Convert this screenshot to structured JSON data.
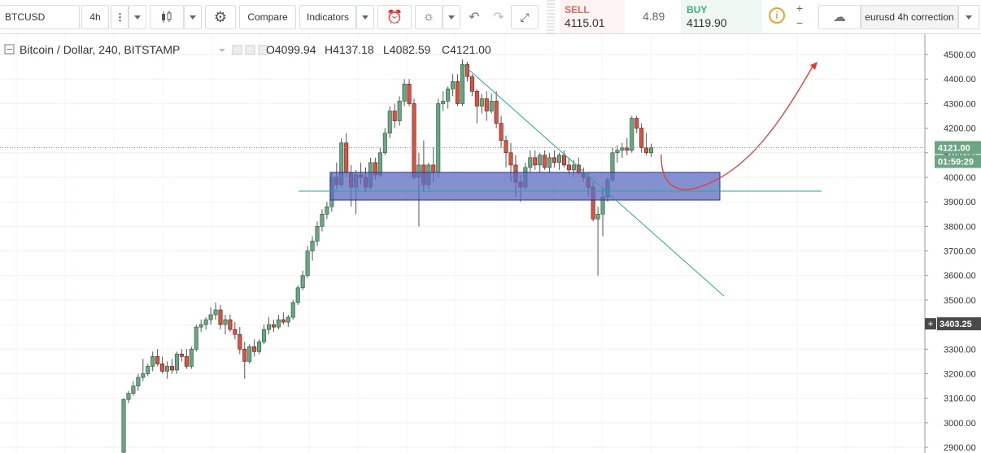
{
  "toolbar": {
    "symbol": "BTCUSD",
    "interval": "4h",
    "compare": "Compare",
    "indicators": "Indicators",
    "sell_label": "SELL",
    "sell_price": "4115.01",
    "spread": "4.89",
    "buy_label": "BUY",
    "buy_price": "4119.90",
    "chart_name": "eurusd 4h correction"
  },
  "chart_data": {
    "type": "candlestick",
    "title": "Bitcoin / Dollar, 240, BITSTAMP",
    "ohlc_header": [
      "O4099.94",
      "H4137.18",
      "L4082.59",
      "C4121.00"
    ],
    "open": [
      2880,
      3095,
      3120,
      3150,
      3185,
      3200,
      3230,
      3270,
      3240,
      3210,
      3230,
      3215,
      3280,
      3270,
      3230,
      3300,
      3390,
      3400,
      3420,
      3440,
      3460,
      3400,
      3420,
      3380,
      3360,
      3300,
      3250,
      3310,
      3290,
      3330,
      3380,
      3400,
      3390,
      3420,
      3410,
      3430,
      3490,
      3550,
      3600,
      3700,
      3740,
      3800,
      3850,
      3880,
      4000,
      3970,
      4140,
      4020,
      3960,
      4010,
      4000,
      3960,
      4060,
      4010,
      4100,
      4180,
      4270,
      4230,
      4310,
      4380,
      4300,
      4000,
      4050,
      3970,
      4050,
      4020,
      4300,
      4310,
      4360,
      4390,
      4300,
      4460,
      4410,
      4350,
      4290,
      4320,
      4270,
      4310,
      4220,
      4150,
      4100,
      4050,
      3980,
      3960,
      4040,
      4080,
      4050,
      4090,
      4040,
      4080,
      4060,
      4090,
      4050,
      4030,
      4050,
      4020,
      4000,
      3960,
      3830,
      3850,
      3920,
      3990,
      4100,
      4110,
      4120,
      4110,
      4240,
      4200,
      4120,
      4099.94
    ],
    "high": [
      3100,
      3130,
      3170,
      3200,
      3260,
      3240,
      3290,
      3300,
      3270,
      3250,
      3260,
      3290,
      3300,
      3300,
      3310,
      3400,
      3420,
      3430,
      3470,
      3490,
      3480,
      3440,
      3440,
      3410,
      3390,
      3330,
      3320,
      3340,
      3340,
      3400,
      3430,
      3420,
      3440,
      3450,
      3440,
      3500,
      3560,
      3620,
      3720,
      3760,
      3820,
      3870,
      3900,
      4020,
      4060,
      4160,
      4180,
      4050,
      4030,
      4060,
      4040,
      4080,
      4080,
      4120,
      4200,
      4290,
      4300,
      4330,
      4400,
      4400,
      4320,
      4100,
      4150,
      4060,
      4120,
      4320,
      4350,
      4370,
      4420,
      4420,
      4480,
      4470,
      4420,
      4360,
      4340,
      4350,
      4340,
      4350,
      4250,
      4170,
      4140,
      4090,
      4010,
      4060,
      4110,
      4110,
      4100,
      4110,
      4100,
      4110,
      4100,
      4110,
      4080,
      4070,
      4080,
      4040,
      4020,
      3980,
      3880,
      3960,
      4000,
      4120,
      4130,
      4140,
      4160,
      4250,
      4250,
      4220,
      4180,
      4137.18
    ],
    "low": [
      2870,
      3080,
      3110,
      3130,
      3170,
      3190,
      3210,
      3230,
      3200,
      3180,
      3200,
      3200,
      3250,
      3220,
      3220,
      3290,
      3370,
      3380,
      3400,
      3420,
      3380,
      3360,
      3370,
      3340,
      3280,
      3180,
      3240,
      3270,
      3280,
      3320,
      3360,
      3370,
      3380,
      3400,
      3390,
      3420,
      3480,
      3540,
      3590,
      3660,
      3720,
      3780,
      3830,
      3860,
      3950,
      3960,
      4000,
      3880,
      3850,
      3970,
      3940,
      3950,
      3990,
      4000,
      4090,
      4160,
      4200,
      4210,
      4290,
      4290,
      3990,
      3800,
      3940,
      3950,
      3980,
      4000,
      4270,
      4280,
      4330,
      4290,
      4290,
      4390,
      4330,
      4220,
      4260,
      4230,
      4260,
      4200,
      4120,
      4040,
      3980,
      3920,
      3900,
      3950,
      4020,
      4030,
      4020,
      4030,
      4020,
      4040,
      4030,
      4040,
      4010,
      4000,
      4010,
      3980,
      3920,
      3820,
      3600,
      3760,
      3900,
      3980,
      4060,
      4080,
      4090,
      4100,
      4180,
      4100,
      4090,
      4082.59
    ],
    "close": [
      3095,
      3120,
      3150,
      3185,
      3200,
      3230,
      3270,
      3240,
      3210,
      3230,
      3215,
      3280,
      3270,
      3230,
      3300,
      3390,
      3400,
      3420,
      3440,
      3460,
      3400,
      3420,
      3380,
      3360,
      3300,
      3250,
      3310,
      3290,
      3330,
      3380,
      3400,
      3390,
      3420,
      3410,
      3430,
      3490,
      3550,
      3600,
      3700,
      3740,
      3800,
      3850,
      3880,
      4000,
      3970,
      4140,
      4020,
      3960,
      4010,
      4000,
      3960,
      4060,
      4010,
      4100,
      4180,
      4270,
      4230,
      4310,
      4380,
      4300,
      4000,
      4050,
      3970,
      4050,
      4020,
      4300,
      4310,
      4360,
      4390,
      4300,
      4460,
      4410,
      4350,
      4290,
      4320,
      4270,
      4310,
      4220,
      4150,
      4100,
      4050,
      3980,
      3960,
      4040,
      4080,
      4050,
      4090,
      4040,
      4080,
      4060,
      4090,
      4050,
      4030,
      4050,
      4020,
      4000,
      3960,
      3830,
      3850,
      3920,
      3990,
      4100,
      4110,
      4120,
      4110,
      4240,
      4200,
      4120,
      4100,
      4121
    ],
    "up_color": "#6ba583",
    "down_color": "#d75442",
    "ylim": [
      2877,
      4583
    ],
    "yticks": [
      {
        "value": 2900,
        "label": "2900.00"
      },
      {
        "value": 3000,
        "label": "3000.00"
      },
      {
        "value": 3100,
        "label": "3100.00"
      },
      {
        "value": 3200,
        "label": "3200.00"
      },
      {
        "value": 3300,
        "label": "3300.00"
      },
      {
        "value": 3400,
        "label": "3400.00"
      },
      {
        "value": 3500,
        "label": "3500.00"
      },
      {
        "value": 3600,
        "label": "3600.00"
      },
      {
        "value": 3700,
        "label": "3700.00"
      },
      {
        "value": 3800,
        "label": "3800.00"
      },
      {
        "value": 3900,
        "label": "3900.00"
      },
      {
        "value": 4000,
        "label": "4000.00"
      },
      {
        "value": 4100,
        "label": "4100.00"
      },
      {
        "value": 4200,
        "label": "4200.00"
      },
      {
        "value": 4300,
        "label": "4300.00"
      },
      {
        "value": 4400,
        "label": "4400.00"
      },
      {
        "value": 4500,
        "label": "4500.00"
      }
    ],
    "grid": true,
    "last_price_label": "4121.00",
    "countdown": "01:59:29",
    "crosshair": {
      "value": 3403.25,
      "label": "3403.25"
    }
  }
}
